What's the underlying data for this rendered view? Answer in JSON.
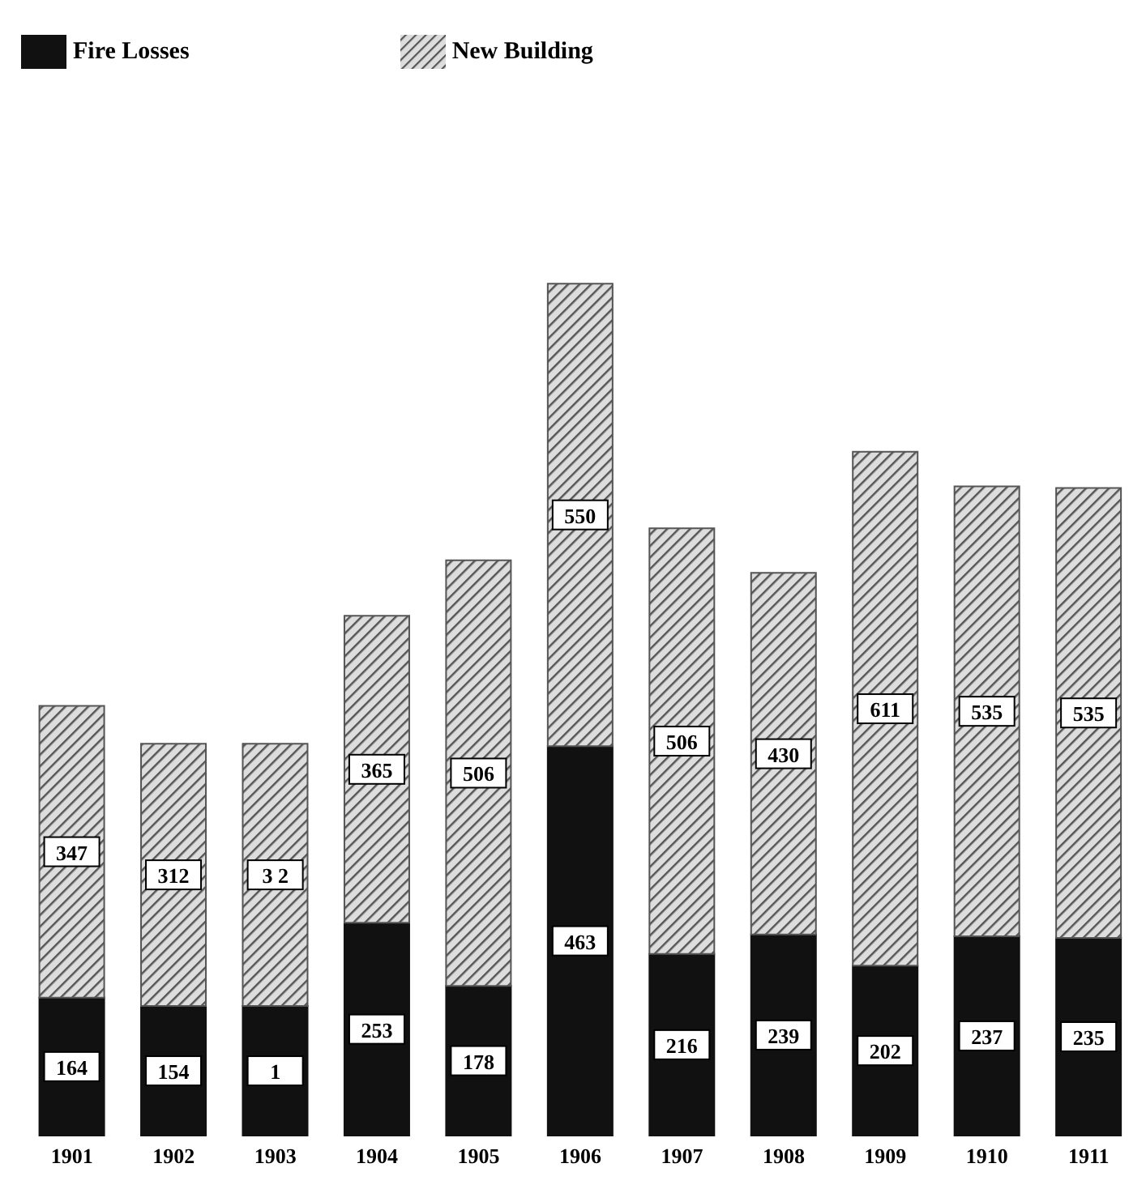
{
  "chart_data": {
    "type": "bar",
    "stacked": true,
    "categories": [
      "1901",
      "1902",
      "1903",
      "1904",
      "1905",
      "1906",
      "1907",
      "1908",
      "1909",
      "1910",
      "1911"
    ],
    "series": [
      {
        "name": "Fire Losses",
        "color": "#111111",
        "values": [
          164,
          154,
          154,
          253,
          178,
          463,
          216,
          239,
          202,
          237,
          235
        ],
        "value_labels": [
          "164",
          "154",
          null,
          "253",
          "178",
          "463",
          "216",
          "239",
          "202",
          "237",
          "235"
        ]
      },
      {
        "name": "New Building",
        "color": "#555555",
        "values": [
          347,
          312,
          312,
          365,
          506,
          550,
          506,
          430,
          611,
          535,
          535
        ],
        "value_labels": [
          "347",
          "312",
          null,
          "365",
          "506",
          "550",
          "506",
          "430",
          "611",
          "535",
          "535"
        ]
      }
    ],
    "annotations": [
      {
        "text": "1",
        "x": "1903",
        "y": 77
      },
      {
        "text": "3 2",
        "x": "1903",
        "y": 310
      }
    ],
    "legend": "top left"
  }
}
